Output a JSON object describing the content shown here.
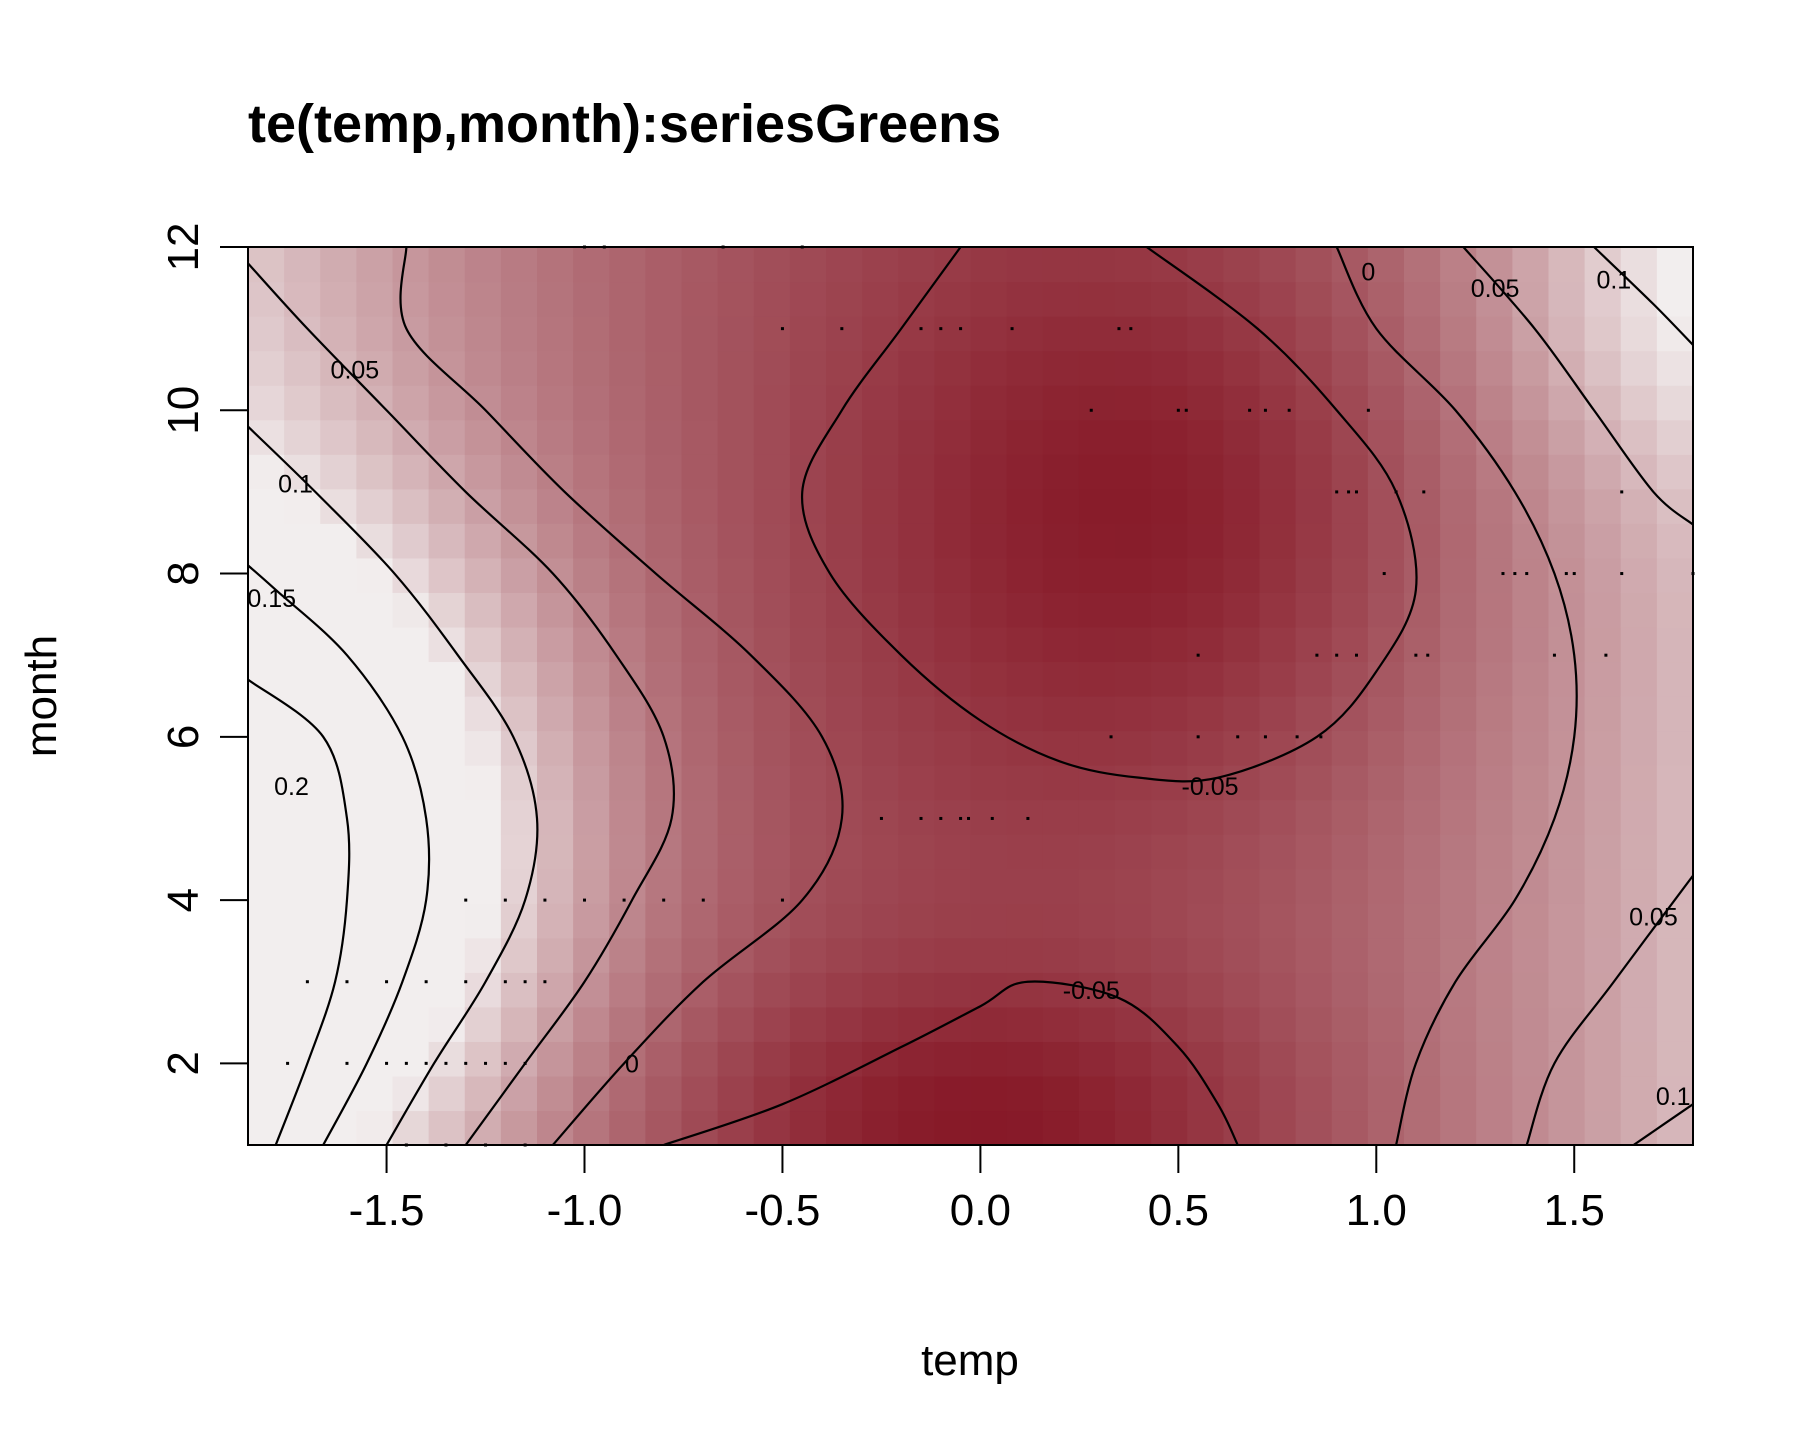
{
  "chart_data": {
    "type": "heatmap",
    "subtype": "contour",
    "title": "te(temp,month):seriesGreens",
    "xlabel": "temp",
    "ylabel": "month",
    "xlim": [
      -1.85,
      1.8
    ],
    "ylim": [
      1,
      12
    ],
    "x_ticks": [
      -1.5,
      -1.0,
      -0.5,
      0.0,
      0.5,
      1.0,
      1.5
    ],
    "x_tick_labels": [
      "-1.5",
      "-1.0",
      "-0.5",
      "0.0",
      "0.5",
      "1.0",
      "1.5"
    ],
    "y_ticks": [
      2,
      4,
      6,
      8,
      10,
      12
    ],
    "y_tick_labels": [
      "2",
      "4",
      "6",
      "8",
      "10",
      "12"
    ],
    "color_low": "#7a0010",
    "color_high": "#f2eeee",
    "grid": false,
    "contours": [
      {
        "level": 0.2,
        "label": "0.2",
        "points": [
          [
            -1.78,
            1
          ],
          [
            -1.7,
            2
          ],
          [
            -1.63,
            3
          ],
          [
            -1.6,
            4
          ],
          [
            -1.6,
            5
          ],
          [
            -1.66,
            6
          ],
          [
            -1.85,
            6.7
          ]
        ]
      },
      {
        "level": 0.15,
        "label": "0.15",
        "points": [
          [
            -1.66,
            1
          ],
          [
            -1.55,
            2
          ],
          [
            -1.46,
            3
          ],
          [
            -1.4,
            4
          ],
          [
            -1.4,
            5
          ],
          [
            -1.46,
            6
          ],
          [
            -1.6,
            7
          ],
          [
            -1.78,
            7.8
          ],
          [
            -1.85,
            8.1
          ]
        ]
      },
      {
        "level": 0.1,
        "label": "0.1",
        "points": [
          [
            -1.5,
            1
          ],
          [
            -1.38,
            2
          ],
          [
            -1.25,
            3
          ],
          [
            -1.15,
            4
          ],
          [
            -1.12,
            5
          ],
          [
            -1.18,
            6
          ],
          [
            -1.32,
            7
          ],
          [
            -1.48,
            8
          ],
          [
            -1.68,
            9
          ],
          [
            -1.85,
            9.8
          ]
        ]
      },
      {
        "level": 0.05,
        "label": "0.05",
        "points": [
          [
            -1.3,
            1
          ],
          [
            -1.15,
            2
          ],
          [
            -1.0,
            3
          ],
          [
            -0.88,
            4
          ],
          [
            -0.78,
            5
          ],
          [
            -0.8,
            6
          ],
          [
            -0.92,
            7
          ],
          [
            -1.08,
            8
          ],
          [
            -1.3,
            9
          ],
          [
            -1.5,
            10
          ],
          [
            -1.7,
            11
          ],
          [
            -1.85,
            11.8
          ]
        ]
      },
      {
        "level": 0,
        "label": "0",
        "points": [
          [
            -1.08,
            1
          ],
          [
            -0.9,
            2
          ],
          [
            -0.7,
            3
          ],
          [
            -0.45,
            4
          ],
          [
            -0.35,
            5
          ],
          [
            -0.4,
            6
          ],
          [
            -0.58,
            7
          ],
          [
            -0.82,
            8
          ],
          [
            -1.05,
            9
          ],
          [
            -1.25,
            10
          ],
          [
            -1.45,
            11
          ],
          [
            -1.45,
            12
          ]
        ]
      },
      {
        "level": 0,
        "label": "",
        "points": [
          [
            -0.05,
            12
          ],
          [
            -0.2,
            11
          ],
          [
            -0.35,
            10
          ],
          [
            -0.45,
            9
          ],
          [
            -0.38,
            8
          ],
          [
            -0.2,
            7
          ],
          [
            0.0,
            6.2
          ],
          [
            0.2,
            5.7
          ],
          [
            0.4,
            5.5
          ],
          [
            0.6,
            5.5
          ],
          [
            0.85,
            6
          ],
          [
            1.0,
            6.8
          ],
          [
            1.1,
            7.8
          ],
          [
            1.05,
            9
          ],
          [
            0.9,
            10
          ],
          [
            0.7,
            11
          ],
          [
            0.42,
            12
          ]
        ]
      },
      {
        "level": -0.05,
        "label": "-0.05",
        "points": [
          [
            -0.8,
            1
          ],
          [
            -0.5,
            1.5
          ],
          [
            -0.2,
            2.2
          ],
          [
            0.0,
            2.7
          ],
          [
            0.12,
            3
          ],
          [
            0.35,
            2.8
          ],
          [
            0.5,
            2.2
          ],
          [
            0.6,
            1.5
          ],
          [
            0.65,
            1
          ]
        ]
      },
      {
        "level": 0,
        "label": "",
        "points": [
          [
            1.05,
            1
          ],
          [
            1.1,
            2
          ],
          [
            1.2,
            3
          ],
          [
            1.35,
            4
          ],
          [
            1.45,
            5
          ],
          [
            1.5,
            6
          ],
          [
            1.5,
            7
          ],
          [
            1.45,
            8
          ],
          [
            1.35,
            9
          ],
          [
            1.2,
            10
          ],
          [
            1.0,
            11
          ],
          [
            0.9,
            12
          ]
        ]
      },
      {
        "level": 0.05,
        "label": "0.05",
        "points": [
          [
            1.38,
            1
          ],
          [
            1.45,
            2
          ],
          [
            1.6,
            3
          ],
          [
            1.8,
            4.3
          ]
        ]
      },
      {
        "level": 0.05,
        "label": "0.05",
        "points": [
          [
            1.22,
            12
          ],
          [
            1.4,
            11
          ],
          [
            1.55,
            10
          ],
          [
            1.7,
            9
          ],
          [
            1.8,
            8.6
          ]
        ]
      },
      {
        "level": 0.1,
        "label": "0.1",
        "points": [
          [
            1.55,
            12
          ],
          [
            1.7,
            11.3
          ],
          [
            1.8,
            10.8
          ]
        ]
      },
      {
        "level": 0.1,
        "label": "0.1",
        "points": [
          [
            1.65,
            1
          ],
          [
            1.8,
            1.5
          ]
        ]
      }
    ],
    "contour_label_positions": [
      {
        "label": "0.2",
        "x": -1.74,
        "y": 5.4
      },
      {
        "label": "0.15",
        "x": -1.79,
        "y": 7.7
      },
      {
        "label": "0.1",
        "x": -1.73,
        "y": 9.1
      },
      {
        "label": "0.05",
        "x": -1.58,
        "y": 10.5
      },
      {
        "label": "0",
        "x": -0.88,
        "y": 2.0
      },
      {
        "label": "-0.05",
        "x": 0.58,
        "y": 5.4
      },
      {
        "label": "-0.05",
        "x": 0.28,
        "y": 2.9
      },
      {
        "label": "0",
        "x": 0.98,
        "y": 11.7
      },
      {
        "label": "0.05",
        "x": 1.3,
        "y": 11.5
      },
      {
        "label": "0.1",
        "x": 1.6,
        "y": 11.6
      },
      {
        "label": "0.05",
        "x": 1.7,
        "y": 3.8
      },
      {
        "label": "0.1",
        "x": 1.75,
        "y": 1.6
      }
    ],
    "observations": [
      [
        -1.75,
        2
      ],
      [
        -1.6,
        2
      ],
      [
        -1.5,
        2
      ],
      [
        -1.45,
        2
      ],
      [
        -1.4,
        2
      ],
      [
        -1.35,
        2
      ],
      [
        -1.3,
        2
      ],
      [
        -1.25,
        2
      ],
      [
        -1.2,
        2
      ],
      [
        -1.15,
        2
      ],
      [
        -1.7,
        3
      ],
      [
        -1.6,
        3
      ],
      [
        -1.5,
        3
      ],
      [
        -1.4,
        3
      ],
      [
        -1.3,
        3
      ],
      [
        -1.2,
        3
      ],
      [
        -1.15,
        3
      ],
      [
        -1.1,
        3
      ],
      [
        -1.3,
        4
      ],
      [
        -1.2,
        4
      ],
      [
        -1.1,
        4
      ],
      [
        -1.0,
        4
      ],
      [
        -0.9,
        4
      ],
      [
        -0.8,
        4
      ],
      [
        -0.7,
        4
      ],
      [
        -0.5,
        4
      ],
      [
        -0.25,
        5
      ],
      [
        -0.15,
        5
      ],
      [
        -0.1,
        5
      ],
      [
        -0.05,
        5
      ],
      [
        -0.03,
        5
      ],
      [
        0.03,
        5
      ],
      [
        0.12,
        5
      ],
      [
        0.33,
        6
      ],
      [
        0.55,
        6
      ],
      [
        0.65,
        6
      ],
      [
        0.72,
        6
      ],
      [
        0.8,
        6
      ],
      [
        0.86,
        6
      ],
      [
        0.55,
        7
      ],
      [
        0.85,
        7
      ],
      [
        0.9,
        7
      ],
      [
        0.95,
        7
      ],
      [
        1.1,
        7
      ],
      [
        1.13,
        7
      ],
      [
        1.45,
        7
      ],
      [
        1.58,
        7
      ],
      [
        1.02,
        8
      ],
      [
        1.32,
        8
      ],
      [
        1.35,
        8
      ],
      [
        1.38,
        8
      ],
      [
        1.48,
        8
      ],
      [
        1.5,
        8
      ],
      [
        1.62,
        8
      ],
      [
        1.8,
        8
      ],
      [
        0.9,
        9
      ],
      [
        0.93,
        9
      ],
      [
        0.95,
        9
      ],
      [
        1.05,
        9
      ],
      [
        1.12,
        9
      ],
      [
        1.62,
        9
      ],
      [
        0.28,
        10
      ],
      [
        0.5,
        10
      ],
      [
        0.52,
        10
      ],
      [
        0.68,
        10
      ],
      [
        0.72,
        10
      ],
      [
        0.78,
        10
      ],
      [
        0.98,
        10
      ],
      [
        -0.5,
        11
      ],
      [
        -0.35,
        11
      ],
      [
        -0.15,
        11
      ],
      [
        -0.1,
        11
      ],
      [
        -0.05,
        11
      ],
      [
        0.08,
        11
      ],
      [
        0.35,
        11
      ],
      [
        0.38,
        11
      ],
      [
        -1.45,
        1
      ],
      [
        -1.35,
        1
      ],
      [
        -1.25,
        1
      ],
      [
        -1.15,
        1
      ],
      [
        -1.0,
        12
      ],
      [
        -0.95,
        12
      ],
      [
        -0.65,
        12
      ],
      [
        -0.45,
        12
      ]
    ]
  }
}
